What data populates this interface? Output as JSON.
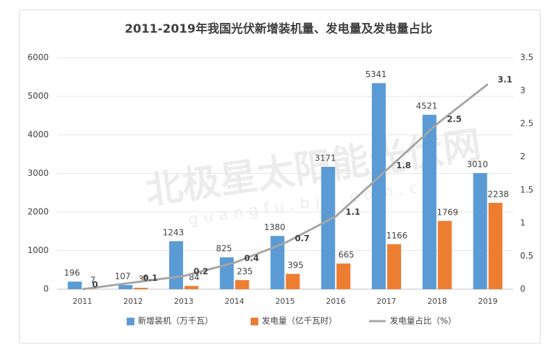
{
  "chart_data": {
    "type": "bar",
    "title": "2011-2019年我国光伏新增装机量、发电量及发电量占比",
    "categories": [
      "2011",
      "2012",
      "2013",
      "2014",
      "2015",
      "2016",
      "2017",
      "2018",
      "2019"
    ],
    "series": [
      {
        "name": "新增装机（万千瓦）",
        "color": "#5b9bd5",
        "values": [
          196,
          107,
          1243,
          825,
          1380,
          3171,
          5341,
          4521,
          3010
        ]
      },
      {
        "name": "发电量（亿千瓦时）",
        "color": "#ed7d31",
        "values": [
          7,
          36,
          84,
          235,
          395,
          665,
          1166,
          1769,
          2238
        ]
      },
      {
        "name": "发电量占比（%）",
        "color": "#a5a5a5",
        "type": "line",
        "axis": "y2",
        "values": [
          0,
          0.1,
          0.2,
          0.4,
          0.7,
          1.1,
          1.8,
          2.5,
          3.1
        ]
      }
    ],
    "ylim": [
      0,
      6000
    ],
    "yticks": [
      0,
      1000,
      2000,
      3000,
      4000,
      5000,
      6000
    ],
    "y2lim": [
      0,
      3.5
    ],
    "y2ticks": [
      0,
      0.5,
      1,
      1.5,
      2,
      2.5,
      3,
      3.5
    ],
    "legend": "bottom",
    "watermark": [
      "北极星太阳能光伏网",
      "guangfu.bjx.com.cn"
    ]
  }
}
